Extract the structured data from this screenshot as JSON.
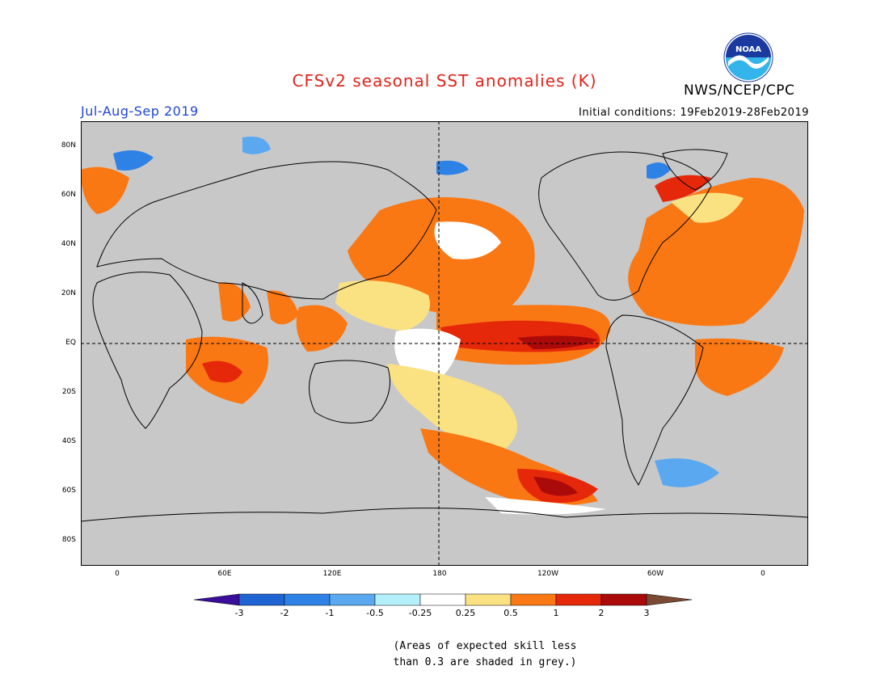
{
  "title": "CFSv2 seasonal SST anomalies (K)",
  "season": "Jul-Aug-Sep 2019",
  "agency": "NWS/NCEP/CPC",
  "logo_text": "NOAA",
  "initial_conditions": "Initial conditions: 19Feb2019-28Feb2019",
  "map": {
    "land_color": "#c8c8c8",
    "ocean_color": "#c8c8c8",
    "lat_labels": [
      "80N",
      "60N",
      "40N",
      "20N",
      "EQ",
      "20S",
      "40S",
      "60S",
      "80S"
    ],
    "lon_labels": [
      "0",
      "60E",
      "120E",
      "180",
      "120W",
      "60W",
      "0"
    ]
  },
  "colorbar": {
    "colors": [
      "#3a0e9a",
      "#1e64d2",
      "#2e82e6",
      "#5aa8f0",
      "#b4f0fa",
      "#ffffff",
      "#fae182",
      "#fa7814",
      "#e6280a",
      "#aa0a0a",
      "#7a4a32"
    ],
    "labels": [
      "-3",
      "-2",
      "-1",
      "-0.5",
      "-0.25",
      "0.25",
      "0.5",
      "1",
      "2",
      "3"
    ]
  },
  "note_line1": "(Areas of expected skill less",
  "note_line2": "than 0.3 are shaded in grey.)"
}
